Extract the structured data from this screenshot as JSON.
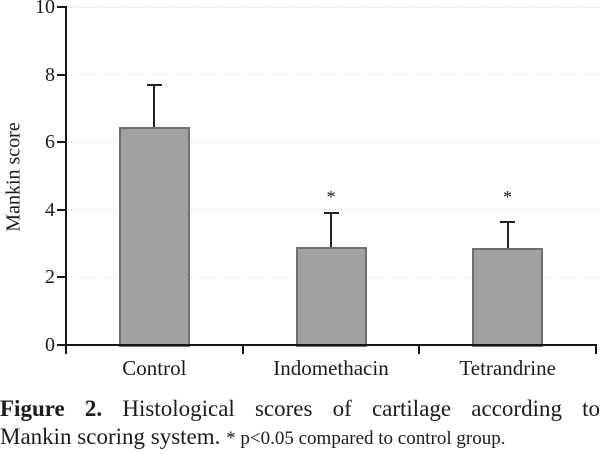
{
  "figure": {
    "caption": {
      "label": "Figure 2.",
      "line1_rest": "Histological scores of cartilage according to",
      "line2_main": "Mankin scoring system.",
      "note": "* p<0.05 compared to control group."
    }
  },
  "chart_data": {
    "type": "bar",
    "title": "",
    "xlabel": "",
    "ylabel": "Mankin score",
    "ylim": [
      0,
      10
    ],
    "yticks": [
      0,
      2,
      4,
      6,
      8,
      10
    ],
    "grid": "horizontal-dotted-at-each-ytick",
    "legend": "none",
    "categories": [
      "Control",
      "Indomethacin",
      "Tetrandrine"
    ],
    "values": [
      6.45,
      2.9,
      2.87
    ],
    "error_bar_tops": [
      7.7,
      3.9,
      3.65
    ],
    "significant": [
      false,
      true,
      true
    ],
    "significance_marker": "*",
    "significance_marker_level": 4.45,
    "bar_fill_color": "#a1a1a4",
    "bar_border_color": "#6f6f72",
    "axis_color": "#161616",
    "gridline_color": "#c9c9c9"
  }
}
